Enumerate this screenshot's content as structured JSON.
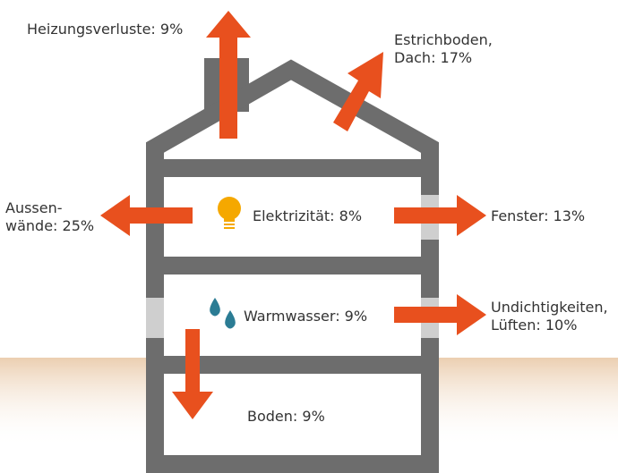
{
  "labels": {
    "heating": [
      "Heizungsverluste: 9%"
    ],
    "attic": [
      "Estrichboden,",
      "Dach: 17%"
    ],
    "walls": [
      "Aussen-",
      "wände: 25%"
    ],
    "electricity": [
      "Elektrizität: 8%"
    ],
    "windows": [
      "Fenster: 13%"
    ],
    "hotwater": [
      "Warmwasser: 9%"
    ],
    "leaks": [
      "Undichtigkeiten,",
      "Lüften: 10%"
    ],
    "floor": [
      "Boden: 9%"
    ]
  }
}
